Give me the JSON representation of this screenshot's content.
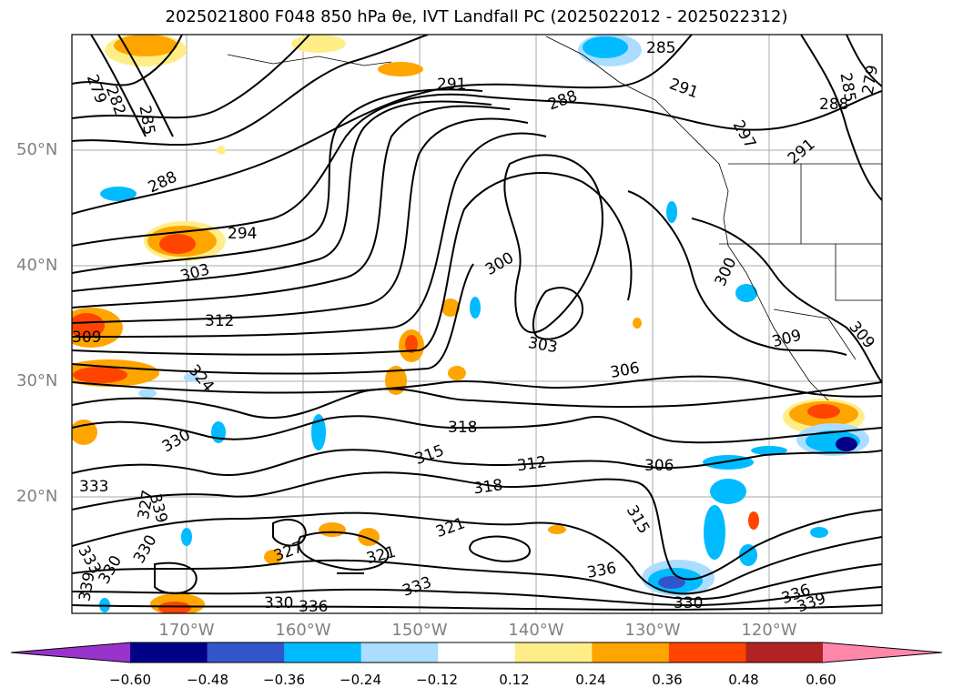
{
  "title": "2025021800 F048 850 hPa θe, IVT Landfall PC (2025022012 - 2025022312)",
  "lat_labels": [
    "50°N",
    "40°N",
    "30°N",
    "20°N"
  ],
  "lon_labels": [
    "170°W",
    "160°W",
    "150°W",
    "140°W",
    "130°W",
    "120°W"
  ],
  "colorbar": {
    "ticks": [
      "−0.60",
      "−0.48",
      "−0.36",
      "−0.24",
      "−0.12",
      "0.12",
      "0.24",
      "0.36",
      "0.48",
      "0.60"
    ],
    "colors": [
      "#9933cc",
      "#000088",
      "#3355cc",
      "#00bbff",
      "#aaddff",
      "#ffffff",
      "#ffee88",
      "#ffa500",
      "#ff4400",
      "#b22222",
      "#ff88aa"
    ]
  },
  "contour_labels": [
    "279",
    "282",
    "285",
    "288",
    "291",
    "288",
    "285",
    "291",
    "288",
    "285",
    "279",
    "297",
    "291",
    "294",
    "303",
    "300",
    "300",
    "312",
    "309",
    "309",
    "309",
    "324",
    "303",
    "306",
    "330",
    "318",
    "315",
    "312",
    "306",
    "333",
    "327",
    "339",
    "318",
    "321",
    "315",
    "333",
    "330",
    "330",
    "321",
    "327",
    "333",
    "336",
    "339",
    "330",
    "336",
    "339"
  ]
}
